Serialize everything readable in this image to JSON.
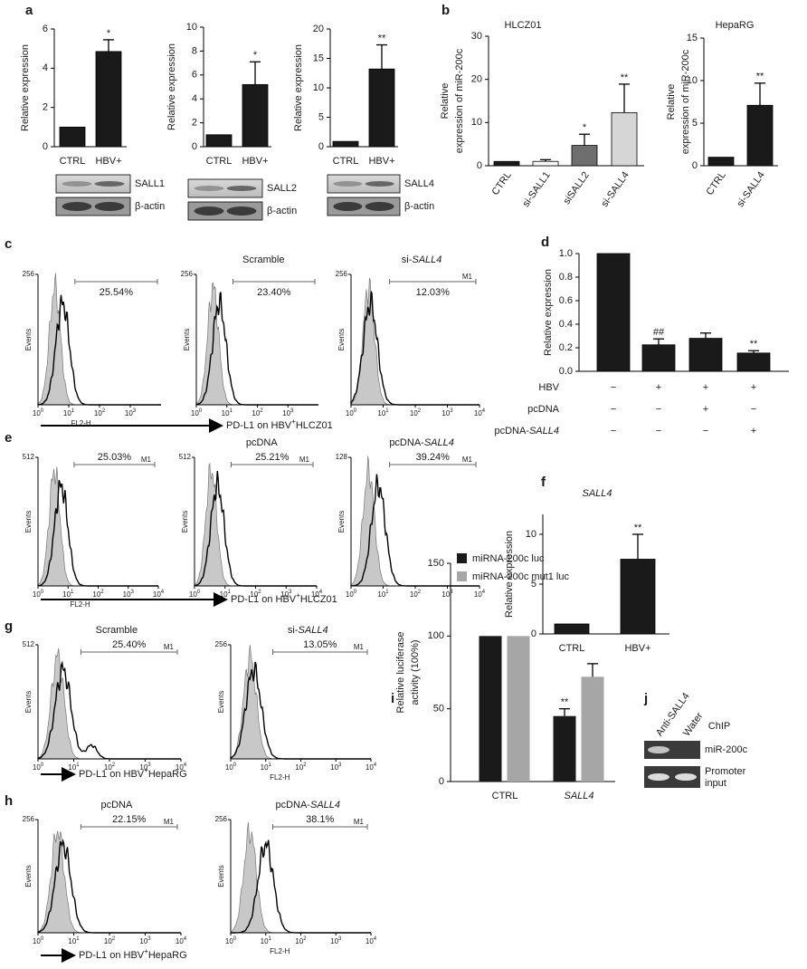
{
  "chart_data": [
    {
      "type": "bar",
      "letter": "a",
      "ylabel": [
        "Relative expression"
      ],
      "categories": [
        "CTRL",
        "HBV+"
      ],
      "values": [
        1,
        4.85
      ],
      "errors": [
        null,
        0.6
      ],
      "annotations": [
        null,
        "*"
      ],
      "color": "#1a1a1a",
      "ylim": [
        0,
        6
      ],
      "yticks": [
        0,
        2,
        4,
        6
      ]
    },
    {
      "type": "bar",
      "ylabel": [
        "Relative expression"
      ],
      "categories": [
        "CTRL",
        "HBV+"
      ],
      "values": [
        1,
        5.2
      ],
      "errors": [
        null,
        1.9
      ],
      "annotations": [
        null,
        "*"
      ],
      "color": "#1a1a1a",
      "ylim": [
        0,
        10
      ],
      "yticks": [
        0,
        2,
        4,
        6,
        8,
        10
      ]
    },
    {
      "type": "bar",
      "ylabel": [
        "Relative expression"
      ],
      "categories": [
        "CTRL",
        "HBV+"
      ],
      "values": [
        0.9,
        13.2
      ],
      "errors": [
        null,
        4.1
      ],
      "annotations": [
        null,
        "**"
      ],
      "color": "#1a1a1a",
      "ylim": [
        0,
        20
      ],
      "yticks": [
        0,
        5,
        10,
        15,
        20
      ]
    },
    {
      "type": "bar",
      "letter": "b",
      "title": "HLCZ01",
      "ylabel": [
        "Relative",
        "expression of miR-200c"
      ],
      "categories": [
        "CTRL",
        "si-SALL1",
        "siSALL2",
        "si-SALL4"
      ],
      "values": [
        1,
        1,
        4.7,
        12.3
      ],
      "errors": [
        null,
        0.4,
        2.6,
        6.6
      ],
      "annotations": [
        null,
        null,
        "*",
        "**"
      ],
      "colors": [
        "#1a1a1a",
        "#ffffff",
        "#6e6e6e",
        "#d6d6d6"
      ],
      "ylim": [
        0,
        30
      ],
      "yticks": [
        0,
        10,
        20,
        30
      ]
    },
    {
      "type": "bar",
      "title": "HepaRG",
      "ylabel": [
        "Relative",
        "expression of miR-200c"
      ],
      "categories": [
        "CTRL",
        "si-SALL4"
      ],
      "values": [
        1,
        7.1
      ],
      "errors": [
        null,
        2.6
      ],
      "annotations": [
        null,
        "**"
      ],
      "color": "#1a1a1a",
      "ylim": [
        0,
        15
      ],
      "yticks": [
        0,
        5,
        10,
        15
      ]
    },
    {
      "type": "bar",
      "letter": "d",
      "ylabel": [
        "Relative expression"
      ],
      "values": [
        1.0,
        0.225,
        0.28,
        0.155
      ],
      "errors": [
        null,
        0.05,
        0.045,
        0.02
      ],
      "annotations": [
        null,
        "##",
        null,
        "**"
      ],
      "color": "#1a1a1a",
      "ylim": [
        0,
        1
      ],
      "yticks": [
        {
          "value": 0,
          "label": "0.0"
        },
        0.2,
        0.4,
        0.6,
        0.8,
        {
          "value": 1,
          "label": "1.0"
        }
      ],
      "conditions": [
        {
          "name": "HBV",
          "signs": [
            "−",
            "+",
            "+",
            "+"
          ]
        },
        {
          "name": "pcDNA",
          "signs": [
            "−",
            "−",
            "+",
            "−"
          ]
        },
        {
          "name": "pcDNA-",
          "name_italic": "SALL4",
          "signs": [
            "−",
            "−",
            "−",
            "+"
          ]
        }
      ]
    },
    {
      "type": "bar",
      "letter": "f",
      "title": "SALL4",
      "ylabel": [
        "Relative expression"
      ],
      "categories": [
        "CTRL",
        "HBV+"
      ],
      "values": [
        1,
        7.5
      ],
      "errors": [
        null,
        2.5
      ],
      "annotations": [
        null,
        "**"
      ],
      "color": "#1a1a1a",
      "ylim": [
        0,
        12
      ],
      "yticks": [
        0,
        5,
        10
      ]
    },
    {
      "type": "grouped_bar",
      "letter": "i",
      "ylabel": [
        "Relative luciferase",
        "activity (100%)"
      ],
      "categories": [
        "CTRL",
        "SALL4"
      ],
      "series": [
        {
          "name": "miRNA-200c luc",
          "color": "#1a1a1a",
          "values": [
            100,
            45
          ],
          "errors": [
            null,
            5
          ],
          "annotations": [
            null,
            "**"
          ]
        },
        {
          "name": "miRNA-200c mut1 luc",
          "color": "#a6a6a6",
          "values": [
            100,
            72
          ],
          "errors": [
            null,
            9
          ]
        }
      ],
      "ylim": [
        0,
        150
      ],
      "yticks": [
        0,
        50,
        100,
        150
      ]
    }
  ],
  "flow_groups": [
    {
      "letter": "c",
      "caption": {
        "text": "PD-L1 on HBV",
        "sup": "+",
        "cell": "HLCZ01"
      },
      "panels": [
        {
          "ymax": 256,
          "ylabel": "Events",
          "percent": "25.54%",
          "xbase": "10",
          "xexp": [
            0,
            1,
            2,
            3
          ],
          "xlabel": "FL2-H"
        },
        {
          "title": "Scramble",
          "ymax": 256,
          "ylabel": "Events",
          "percent": "23.40%",
          "xbase": "10",
          "xexp": [
            0,
            1,
            2,
            3
          ]
        },
        {
          "title": "si-",
          "title_italic": "SALL4",
          "ymax": 256,
          "ylabel": "Events",
          "percent": "12.03%",
          "gate": "M1",
          "xbase": "10",
          "xexp": [
            0,
            1,
            2,
            3,
            4
          ]
        }
      ]
    },
    {
      "letter": "e",
      "caption": {
        "text": "PD-L1 on HBV",
        "sup": "+",
        "cell": "HLCZ01"
      },
      "panels": [
        {
          "ymax": 512,
          "ylabel": "Events",
          "percent": "25.03%",
          "gate": "M1",
          "xbase": "10",
          "xexp": [
            0,
            1,
            2,
            3,
            4
          ],
          "xlabel": "FL2-H"
        },
        {
          "title": "pcDNA",
          "ymax": 512,
          "ylabel": "Events",
          "percent": "25.21%",
          "gate": "M1",
          "xbase": "10",
          "xexp": [
            0,
            1,
            2,
            3,
            4
          ]
        },
        {
          "title": "pcDNA-",
          "title_italic": "SALL4",
          "ymax": 128,
          "ylabel": "Events",
          "percent": "39.24%",
          "gate": "M1",
          "xbase": "10",
          "xexp": [
            0,
            1,
            2,
            3,
            4
          ]
        }
      ]
    },
    {
      "letter": "g",
      "caption": {
        "text": "PD-L1 on HBV",
        "sup": "+",
        "cell": "HepaRG"
      },
      "panels": [
        {
          "title": "Scramble",
          "ymax": 512,
          "ylabel": "Events",
          "percent": "25.40%",
          "gate": "M1",
          "xbase": "10",
          "xexp": [
            0,
            1,
            2,
            3,
            4
          ]
        },
        {
          "title": "si-",
          "title_italic": "SALL4",
          "ymax": 256,
          "ylabel": "Events",
          "percent": "13.05%",
          "gate": "M1",
          "xbase": "10",
          "xexp": [
            0,
            1,
            2,
            3,
            4
          ],
          "xlabel": "FL2-H"
        }
      ]
    },
    {
      "letter": "h",
      "caption": {
        "text": "PD-L1 on HBV",
        "sup": "+",
        "cell": "HepaRG"
      },
      "panels": [
        {
          "title": "pcDNA",
          "ymax": 256,
          "ylabel": "Events",
          "percent": "22.15%",
          "gate": "M1",
          "xbase": "10",
          "xexp": [
            0,
            1,
            2,
            3,
            4
          ]
        },
        {
          "title": "pcDNA-",
          "title_italic": "SALL4",
          "ymax": 256,
          "ylabel": "Events",
          "percent": "38.1%",
          "gate": "M1",
          "xbase": "10",
          "xexp": [
            0,
            1,
            2,
            3,
            4
          ],
          "xlabel": "FL2-H"
        }
      ]
    }
  ],
  "blots": [
    {
      "labels": [
        "SALL1",
        "β-actin"
      ]
    },
    {
      "labels": [
        "SALL2",
        "β-actin"
      ]
    },
    {
      "labels": [
        "SALL4",
        "β-actin"
      ]
    }
  ],
  "chip": {
    "letter": "j",
    "title": "ChIP",
    "lanes": [
      "Anti-SALL4",
      "Water"
    ],
    "rows": [
      [
        "miR-200c"
      ],
      [
        "Promoter",
        "input"
      ]
    ]
  }
}
